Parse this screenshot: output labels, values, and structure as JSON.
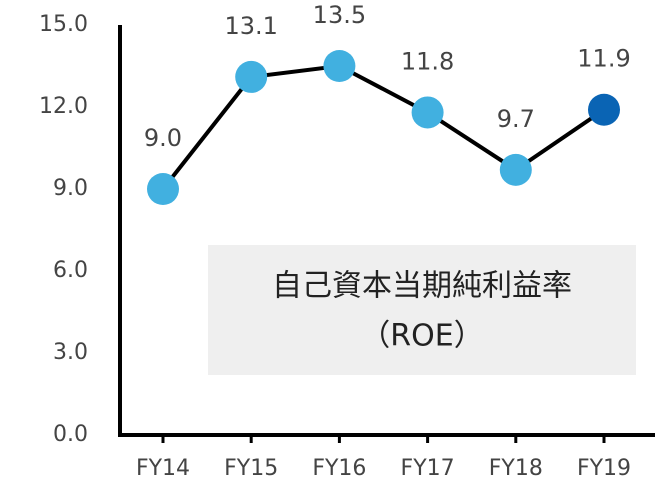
{
  "chart_data": {
    "type": "line",
    "categories": [
      "FY14",
      "FY15",
      "FY16",
      "FY17",
      "FY18",
      "FY19"
    ],
    "values": [
      9.0,
      13.1,
      13.5,
      11.8,
      9.7,
      11.9
    ],
    "value_labels": [
      "9.0",
      "13.1",
      "13.5",
      "11.8",
      "9.7",
      "11.9"
    ],
    "line_color": "#000000",
    "point_colors": [
      "#41b0e0",
      "#41b0e0",
      "#41b0e0",
      "#41b0e0",
      "#41b0e0",
      "#0a64b4"
    ],
    "ylim": [
      0,
      15
    ],
    "yticks": [
      {
        "value": 0,
        "label": "0.0"
      },
      {
        "value": 3,
        "label": "3.0"
      },
      {
        "value": 6,
        "label": "6.0"
      },
      {
        "value": 9,
        "label": "9.0"
      },
      {
        "value": 12,
        "label": "12.0"
      },
      {
        "value": 15,
        "label": "15.0"
      }
    ],
    "annotation": [
      "自己資本当期純利益率",
      "（ROE）"
    ],
    "grid": false
  }
}
